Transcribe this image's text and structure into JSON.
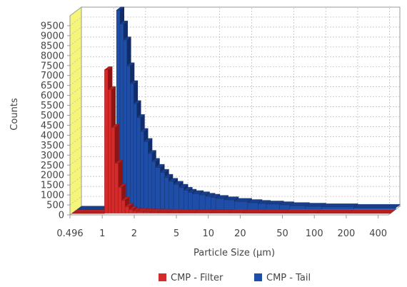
{
  "chart_data": {
    "type": "bar",
    "title": "",
    "xlabel": "Particle Size (µm)",
    "ylabel": "Counts",
    "x_scale": "log",
    "xlim": [
      0.496,
      500
    ],
    "ylim": [
      0,
      10000
    ],
    "grid": true,
    "legend_position": "bottom",
    "x_ticks": [
      {
        "value": 0.496,
        "label": "0.496"
      },
      {
        "value": 1,
        "label": "1"
      },
      {
        "value": 2,
        "label": "2"
      },
      {
        "value": 5,
        "label": "5"
      },
      {
        "value": 10,
        "label": "10"
      },
      {
        "value": 20,
        "label": "20"
      },
      {
        "value": 50,
        "label": "50"
      },
      {
        "value": 100,
        "label": "100"
      },
      {
        "value": 200,
        "label": "200"
      },
      {
        "value": 400,
        "label": "400"
      }
    ],
    "y_ticks": [
      "0",
      "500",
      "1000",
      "1500",
      "2000",
      "2500",
      "3000",
      "3500",
      "4000",
      "4500",
      "5000",
      "5500",
      "6000",
      "6500",
      "7000",
      "7500",
      "8000",
      "8500",
      "9000",
      "9500"
    ],
    "y_tick_values": [
      0,
      500,
      1000,
      1500,
      2000,
      2500,
      3000,
      3500,
      4000,
      4500,
      5000,
      5500,
      6000,
      6500,
      7000,
      7500,
      8000,
      8500,
      9000,
      9500
    ],
    "series": [
      {
        "name": "CMP - Filter",
        "color": "#d42a2a",
        "x": [
          0.496,
          1.0,
          1.08,
          1.16,
          1.25,
          1.35,
          1.45,
          1.56,
          1.7,
          1.85,
          2.0,
          2.3,
          2.7,
          3.2,
          4,
          5,
          7,
          10,
          15,
          20,
          30,
          50,
          100,
          200,
          500
        ],
        "y": [
          0,
          7200,
          6200,
          4300,
          2500,
          1300,
          650,
          330,
          180,
          110,
          80,
          60,
          50,
          40,
          35,
          30,
          25,
          20,
          18,
          15,
          12,
          10,
          8,
          6,
          5
        ]
      },
      {
        "name": "CMP - Tail",
        "color": "#1f4ea8",
        "x": [
          0.496,
          1.0,
          1.16,
          1.25,
          1.35,
          1.45,
          1.56,
          1.68,
          1.8,
          1.95,
          2.1,
          2.3,
          2.5,
          2.7,
          3.0,
          3.3,
          3.6,
          4.0,
          4.5,
          5,
          5.5,
          6,
          7,
          8,
          9,
          10,
          12,
          15,
          20,
          25,
          30,
          40,
          50,
          70,
          100,
          200,
          500
        ],
        "y": [
          0,
          0,
          10000,
          9300,
          8500,
          7200,
          6300,
          5300,
          4600,
          3900,
          3400,
          2800,
          2400,
          2100,
          1850,
          1600,
          1400,
          1250,
          1100,
          950,
          850,
          780,
          720,
          650,
          600,
          540,
          470,
          390,
          330,
          290,
          260,
          220,
          180,
          150,
          120,
          90,
          70
        ]
      }
    ]
  }
}
